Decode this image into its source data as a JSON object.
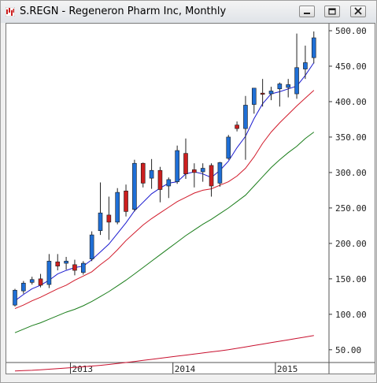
{
  "window": {
    "title": "S.REGN - Regeneron Pharm Inc, Monthly",
    "app_icon": "chart-app-icon",
    "controls": [
      "minimize-icon",
      "restore-icon",
      "close-icon"
    ]
  },
  "chart_data": {
    "type": "candlestick",
    "title": "",
    "ylim": [
      32,
      510
    ],
    "yticks": [
      50,
      100,
      150,
      200,
      250,
      300,
      350,
      400,
      450,
      500
    ],
    "ytick_labels": [
      "50.00",
      "100.00",
      "150.00",
      "200.00",
      "250.00",
      "300.00",
      "350.00",
      "400.00",
      "450.00",
      "500.00"
    ],
    "xticks": [
      {
        "index": 6.5,
        "label": "2013"
      },
      {
        "index": 18.5,
        "label": "2014"
      },
      {
        "index": 30.5,
        "label": "2015"
      }
    ],
    "up_color": "#1f6fd6",
    "down_color": "#cc1f1f",
    "grid": false,
    "candles": [
      {
        "o": 113,
        "h": 136,
        "l": 111,
        "c": 134
      },
      {
        "o": 133,
        "h": 147,
        "l": 129,
        "c": 144
      },
      {
        "o": 145,
        "h": 153,
        "l": 142,
        "c": 149
      },
      {
        "o": 150,
        "h": 157,
        "l": 138,
        "c": 141
      },
      {
        "o": 142,
        "h": 185,
        "l": 137,
        "c": 175
      },
      {
        "o": 174,
        "h": 185,
        "l": 162,
        "c": 168
      },
      {
        "o": 172,
        "h": 181,
        "l": 163,
        "c": 175
      },
      {
        "o": 170,
        "h": 177,
        "l": 155,
        "c": 162
      },
      {
        "o": 159,
        "h": 175,
        "l": 156,
        "c": 172
      },
      {
        "o": 178,
        "h": 217,
        "l": 175,
        "c": 212
      },
      {
        "o": 218,
        "h": 286,
        "l": 212,
        "c": 243
      },
      {
        "o": 240,
        "h": 266,
        "l": 205,
        "c": 230
      },
      {
        "o": 230,
        "h": 278,
        "l": 227,
        "c": 272
      },
      {
        "o": 274,
        "h": 283,
        "l": 238,
        "c": 245
      },
      {
        "o": 248,
        "h": 318,
        "l": 245,
        "c": 313
      },
      {
        "o": 313,
        "h": 314,
        "l": 279,
        "c": 285
      },
      {
        "o": 292,
        "h": 319,
        "l": 277,
        "c": 303
      },
      {
        "o": 303,
        "h": 308,
        "l": 258,
        "c": 276
      },
      {
        "o": 281,
        "h": 293,
        "l": 264,
        "c": 290
      },
      {
        "o": 287,
        "h": 338,
        "l": 284,
        "c": 331
      },
      {
        "o": 327,
        "h": 348,
        "l": 291,
        "c": 298
      },
      {
        "o": 304,
        "h": 313,
        "l": 279,
        "c": 300
      },
      {
        "o": 301,
        "h": 313,
        "l": 287,
        "c": 306
      },
      {
        "o": 310,
        "h": 313,
        "l": 266,
        "c": 281
      },
      {
        "o": 285,
        "h": 315,
        "l": 280,
        "c": 314
      },
      {
        "o": 320,
        "h": 353,
        "l": 318,
        "c": 350
      },
      {
        "o": 367,
        "h": 372,
        "l": 358,
        "c": 362
      },
      {
        "o": 362,
        "h": 408,
        "l": 318,
        "c": 395
      },
      {
        "o": 396,
        "h": 419,
        "l": 383,
        "c": 419
      },
      {
        "o": 412,
        "h": 432,
        "l": 393,
        "c": 411
      },
      {
        "o": 411,
        "h": 421,
        "l": 402,
        "c": 415
      },
      {
        "o": 418,
        "h": 427,
        "l": 393,
        "c": 425
      },
      {
        "o": 420,
        "h": 432,
        "l": 406,
        "c": 424
      },
      {
        "o": 411,
        "h": 496,
        "l": 404,
        "c": 448
      },
      {
        "o": 446,
        "h": 479,
        "l": 432,
        "c": 455
      },
      {
        "o": 462,
        "h": 499,
        "l": 454,
        "c": 490
      }
    ],
    "series": [
      {
        "type": "line",
        "color": "#1a1ad0",
        "values": [
          119,
          128,
          136,
          141,
          148,
          157,
          162,
          166,
          168,
          177,
          188,
          199,
          214,
          229,
          246,
          258,
          270,
          278,
          285,
          287,
          298,
          301,
          298,
          293,
          303,
          316,
          335,
          351,
          376,
          397,
          411,
          414,
          418,
          422,
          437,
          455
        ]
      },
      {
        "type": "line",
        "color": "#d11a2a",
        "values": [
          108,
          113,
          119,
          124,
          130,
          136,
          141,
          148,
          154,
          160,
          170,
          179,
          191,
          204,
          215,
          226,
          235,
          243,
          251,
          259,
          265,
          271,
          275,
          277,
          282,
          287,
          295,
          306,
          322,
          341,
          357,
          370,
          382,
          394,
          405,
          416
        ]
      },
      {
        "type": "line",
        "color": "#1a7d1a",
        "values": [
          74,
          79,
          84,
          88,
          93,
          98,
          103,
          107,
          112,
          118,
          125,
          132,
          140,
          148,
          157,
          166,
          175,
          184,
          193,
          202,
          211,
          219,
          227,
          234,
          242,
          250,
          259,
          268,
          281,
          294,
          307,
          318,
          328,
          337,
          348,
          357
        ]
      },
      {
        "type": "line",
        "color": "#c8102e",
        "values": [
          20,
          20.5,
          21,
          21.8,
          22.6,
          23.4,
          24.2,
          25,
          26,
          27,
          28,
          29.2,
          30.5,
          32,
          33.5,
          35,
          36.5,
          38,
          39.5,
          41,
          42.5,
          44,
          45.5,
          47,
          48.5,
          50,
          52,
          54,
          56,
          58,
          60,
          62,
          64,
          66,
          68,
          70
        ]
      }
    ]
  }
}
